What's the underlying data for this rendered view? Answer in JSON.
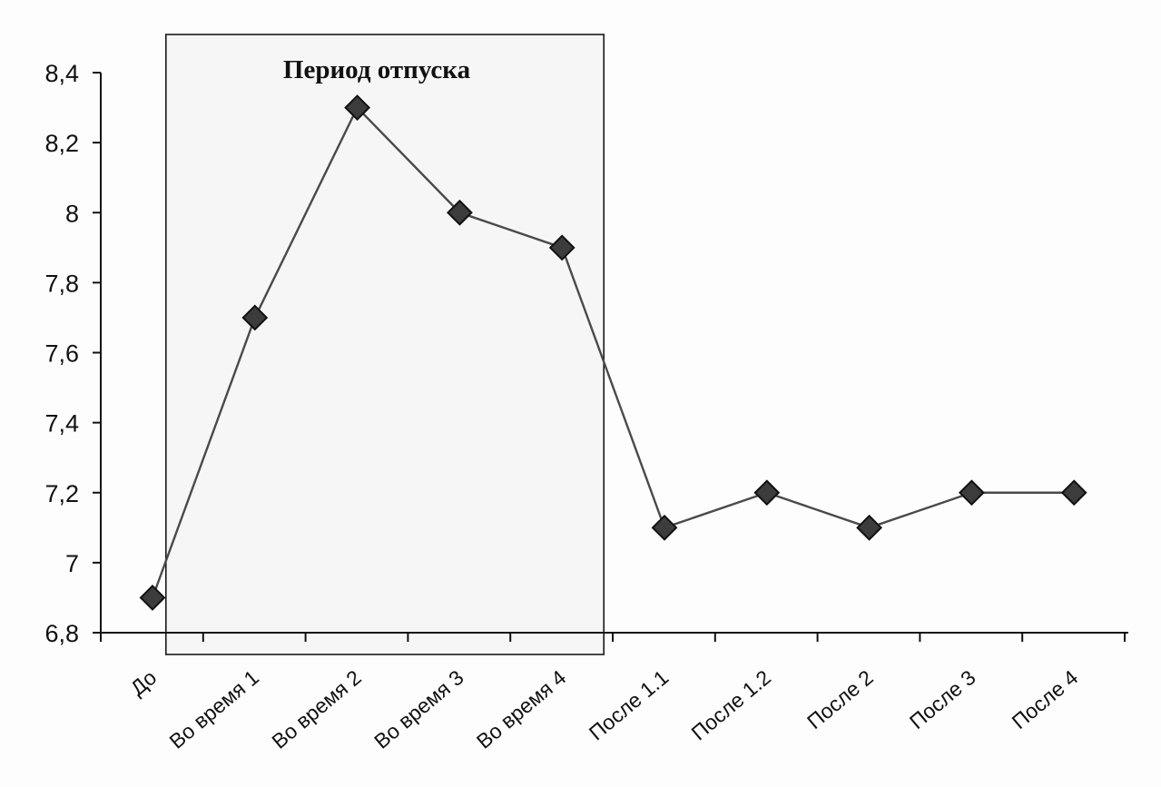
{
  "chart_data": {
    "type": "line",
    "categories": [
      "До",
      "Во время 1",
      "Во время 2",
      "Во время 3",
      "Во время 4",
      "После 1.1",
      "После 1.2",
      "После 2",
      "После 3",
      "После 4"
    ],
    "series": [
      {
        "values": [
          6.9,
          7.7,
          8.3,
          8.0,
          7.9,
          7.1,
          7.2,
          7.1,
          7.2,
          7.2
        ]
      }
    ],
    "ylim": [
      6.8,
      8.4
    ],
    "yticks": [
      6.8,
      7,
      7.2,
      7.4,
      7.6,
      7.8,
      8,
      8.2,
      8.4
    ],
    "ytick_labels": [
      "6,8",
      "7",
      "7,2",
      "7,4",
      "7,6",
      "7,8",
      "8",
      "8,2",
      "8,4"
    ],
    "grid": false,
    "marker": "diamond",
    "annotation": {
      "text": "Период отпуска",
      "from_category": 1,
      "to_category": 4
    },
    "colors": {
      "line": "#4a4a4a",
      "marker_fill": "#3c3c3c",
      "marker_stroke": "#111111",
      "axis": "#111111",
      "shade_fill": "#f6f6f6",
      "shade_stroke": "#1a1a1a"
    }
  }
}
